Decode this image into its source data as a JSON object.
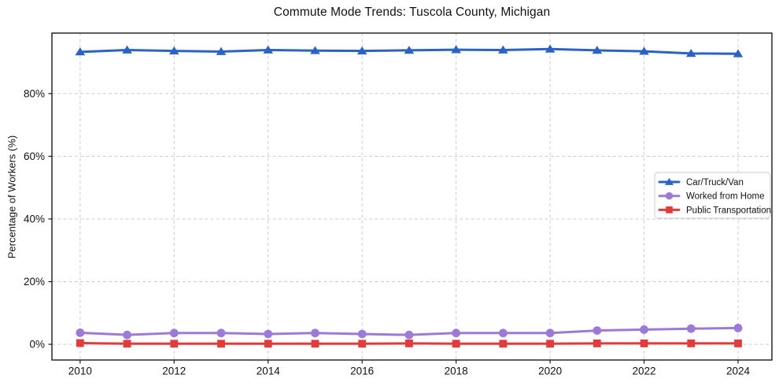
{
  "page": {
    "background": "#ffffff"
  },
  "chart_data": {
    "type": "line",
    "title": "Commute Mode Trends: Tuscola County, Michigan",
    "xlabel": "",
    "ylabel": "Percentage of Workers (%)",
    "x": [
      2010,
      2011,
      2012,
      2013,
      2014,
      2015,
      2016,
      2017,
      2018,
      2019,
      2020,
      2021,
      2022,
      2023,
      2024
    ],
    "series": [
      {
        "name": "Car/Truck/Van",
        "color": "#2b62c6",
        "marker": "triangle",
        "values": [
          93.3,
          93.9,
          93.6,
          93.4,
          93.9,
          93.7,
          93.6,
          93.8,
          94.0,
          93.9,
          94.2,
          93.8,
          93.5,
          92.8,
          92.7
        ]
      },
      {
        "name": "Worked from Home",
        "color": "#9b7ad9",
        "marker": "circle",
        "values": [
          3.7,
          3.0,
          3.6,
          3.6,
          3.3,
          3.6,
          3.3,
          3.0,
          3.6,
          3.6,
          3.6,
          4.4,
          4.7,
          5.0,
          5.2
        ]
      },
      {
        "name": "Public Transportation",
        "color": "#e13b3b",
        "marker": "square",
        "values": [
          0.4,
          0.2,
          0.2,
          0.2,
          0.2,
          0.2,
          0.2,
          0.3,
          0.2,
          0.2,
          0.2,
          0.3,
          0.3,
          0.3,
          0.3
        ]
      }
    ],
    "xticks": {
      "values": [
        2010,
        2012,
        2014,
        2016,
        2018,
        2020,
        2022,
        2024
      ],
      "labels": [
        "2010",
        "2012",
        "2014",
        "2016",
        "2018",
        "2020",
        "2022",
        "2024"
      ]
    },
    "yticks": {
      "values": [
        0,
        20,
        40,
        60,
        80
      ],
      "labels": [
        "0%",
        "20%",
        "40%",
        "60%",
        "80%"
      ]
    },
    "xlim": [
      2009.4,
      2024.72
    ],
    "ylim": [
      -5,
      99.3
    ],
    "grid": true,
    "grid_style": "dashed",
    "legend": {
      "position": "center-right"
    },
    "colors": {
      "grid": "#cccccc",
      "spine": "#1a1a1a",
      "text": "#111111",
      "legend_border": "#cccccc",
      "legend_fill": "#ffffff",
      "background": "#ffffff"
    }
  }
}
